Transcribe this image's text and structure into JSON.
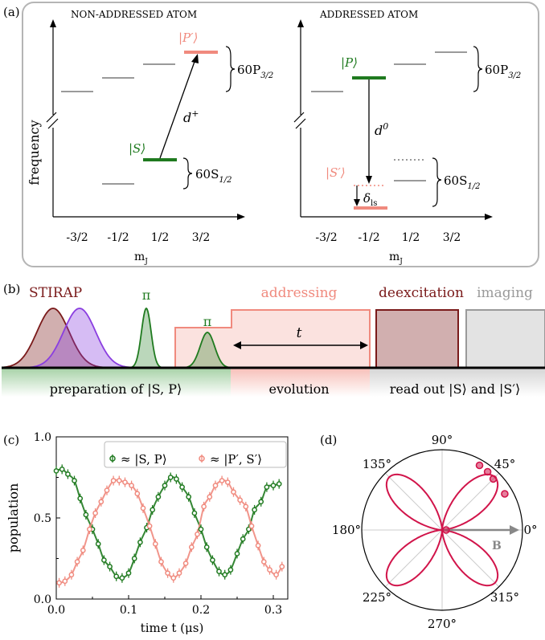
{
  "colors": {
    "green": "#1f7a1f",
    "salmon": "#f08a7e",
    "darkred": "#7a1a1a",
    "purple": "#8a3ee0",
    "gray": "#9a9a9a",
    "crimson": "#d1144a"
  },
  "panel_a": {
    "label": "(a)",
    "left": {
      "title": "NON-ADDRESSED ATOM",
      "ylabel": "frequency",
      "xlabel": "m",
      "xlabel_sub": "J",
      "ticks": [
        "-3/2",
        "-1/2",
        "1/2",
        "3/2"
      ],
      "state_s": "|S⟩",
      "state_p": "|P′⟩",
      "transition": "d",
      "transition_sup": "+",
      "manifold_p": "60P",
      "manifold_p_sub": "3/2",
      "manifold_s": "60S",
      "manifold_s_sub": "1/2"
    },
    "right": {
      "title": "ADDRESSED ATOM",
      "xlabel": "m",
      "xlabel_sub": "J",
      "ticks": [
        "-3/2",
        "-1/2",
        "1/2",
        "3/2"
      ],
      "state_p": "|P⟩",
      "state_s": "|S′⟩",
      "transition": "d",
      "transition_sup": "0",
      "shift": "δ",
      "shift_sub": "ls",
      "manifold_p": "60P",
      "manifold_p_sub": "3/2",
      "manifold_s": "60S",
      "manifold_s_sub": "1/2"
    }
  },
  "panel_b": {
    "label": "(b)",
    "stirap": "STIRAP",
    "pi1": "π",
    "pi2": "π",
    "addressing": "addressing",
    "deexcitation": "deexcitation",
    "imaging": "imaging",
    "t_label": "t",
    "preparation": "preparation of |S, P⟩",
    "evolution": "evolution",
    "readout": "read out |S⟩ and |S′⟩"
  },
  "panel_c": {
    "label": "(c)",
    "legend_sp": "≈ |S, P⟩",
    "legend_ps": "≈ |P′, S′⟩"
  },
  "panel_d": {
    "label": "(d)",
    "angles": [
      "90°",
      "45°",
      "0°",
      "315°",
      "270°",
      "225°",
      "180°",
      "135°"
    ],
    "b_label": "B"
  },
  "chart_data": [
    {
      "type": "scatter",
      "xlabel": "time t (μs)",
      "ylabel": "population",
      "xlim": [
        0,
        0.32
      ],
      "ylim": [
        0,
        1.0
      ],
      "x_ticks": [
        "0.0",
        "0.1",
        "0.2",
        "0.3"
      ],
      "y_ticks": [
        "0.0",
        "0.5",
        "1.0"
      ],
      "legend_position": "top-right",
      "series": [
        {
          "name": "≈ |S, P⟩",
          "color": "#1f7a1f",
          "x": [
            0.0,
            0.008,
            0.016,
            0.025,
            0.033,
            0.041,
            0.05,
            0.058,
            0.066,
            0.074,
            0.083,
            0.091,
            0.1,
            0.108,
            0.116,
            0.125,
            0.133,
            0.141,
            0.15,
            0.158,
            0.166,
            0.174,
            0.183,
            0.191,
            0.2,
            0.208,
            0.216,
            0.225,
            0.233,
            0.241,
            0.25,
            0.258,
            0.266,
            0.274,
            0.283,
            0.291,
            0.3,
            0.308
          ],
          "y": [
            0.79,
            0.8,
            0.77,
            0.73,
            0.62,
            0.52,
            0.43,
            0.34,
            0.24,
            0.2,
            0.14,
            0.13,
            0.16,
            0.25,
            0.35,
            0.44,
            0.55,
            0.63,
            0.7,
            0.75,
            0.74,
            0.69,
            0.63,
            0.53,
            0.43,
            0.32,
            0.24,
            0.17,
            0.15,
            0.18,
            0.28,
            0.37,
            0.43,
            0.55,
            0.6,
            0.69,
            0.7,
            0.71
          ]
        },
        {
          "name": "≈ |P′, S′⟩",
          "color": "#f08a7e",
          "x": [
            0.004,
            0.012,
            0.021,
            0.029,
            0.037,
            0.046,
            0.054,
            0.062,
            0.07,
            0.079,
            0.087,
            0.095,
            0.104,
            0.112,
            0.12,
            0.129,
            0.137,
            0.145,
            0.154,
            0.162,
            0.17,
            0.179,
            0.187,
            0.195,
            0.204,
            0.212,
            0.22,
            0.229,
            0.237,
            0.245,
            0.254,
            0.262,
            0.27,
            0.279,
            0.287,
            0.295,
            0.304,
            0.312
          ],
          "y": [
            0.1,
            0.11,
            0.15,
            0.23,
            0.3,
            0.43,
            0.53,
            0.6,
            0.67,
            0.73,
            0.73,
            0.72,
            0.7,
            0.65,
            0.56,
            0.45,
            0.34,
            0.23,
            0.16,
            0.13,
            0.16,
            0.22,
            0.32,
            0.4,
            0.57,
            0.63,
            0.7,
            0.73,
            0.72,
            0.66,
            0.61,
            0.57,
            0.45,
            0.33,
            0.23,
            0.18,
            0.15,
            0.2
          ]
        }
      ]
    },
    {
      "type": "scatter",
      "title": "",
      "angular_ticks_deg": [
        0,
        45,
        90,
        135,
        180,
        225,
        270,
        315
      ],
      "series": [
        {
          "name": "data",
          "color": "#d1144a",
          "theta_deg": [
            45,
            52,
            60,
            30,
            0
          ],
          "r": [
            0.9,
            0.92,
            0.93,
            0.9,
            0.05
          ]
        }
      ]
    }
  ]
}
